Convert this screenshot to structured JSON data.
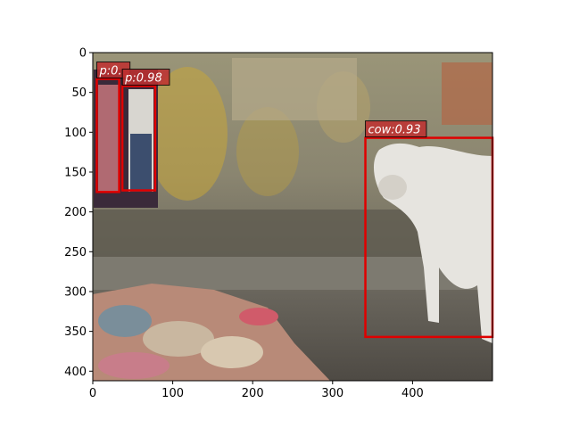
{
  "chart_data": {
    "type": "image",
    "xlim": [
      0,
      500
    ],
    "ylim": [
      0,
      412
    ],
    "x_ticks": [
      0,
      100,
      200,
      300,
      400
    ],
    "y_ticks": [
      0,
      50,
      100,
      150,
      200,
      250,
      300,
      350,
      400
    ],
    "x_tick_labels": [
      "0",
      "100",
      "200",
      "300",
      "400"
    ],
    "y_tick_labels": [
      "0",
      "50",
      "100",
      "150",
      "200",
      "250",
      "300",
      "350",
      "400"
    ],
    "box_color": "#e00000",
    "label_bg": "#c03030",
    "detections": [
      {
        "label": "p:0.",
        "x1": 5,
        "y1": 33,
        "x2": 33,
        "y2": 175
      },
      {
        "label": "p:0.98",
        "x1": 37,
        "y1": 42,
        "x2": 78,
        "y2": 173
      },
      {
        "label": "cow:0.93",
        "x1": 341,
        "y1": 107,
        "x2": 500,
        "y2": 357
      }
    ]
  },
  "scene": {
    "wall_color": "#8f8a72",
    "ground_color": "#5e5a52",
    "cow_color": "#e6e4df"
  }
}
